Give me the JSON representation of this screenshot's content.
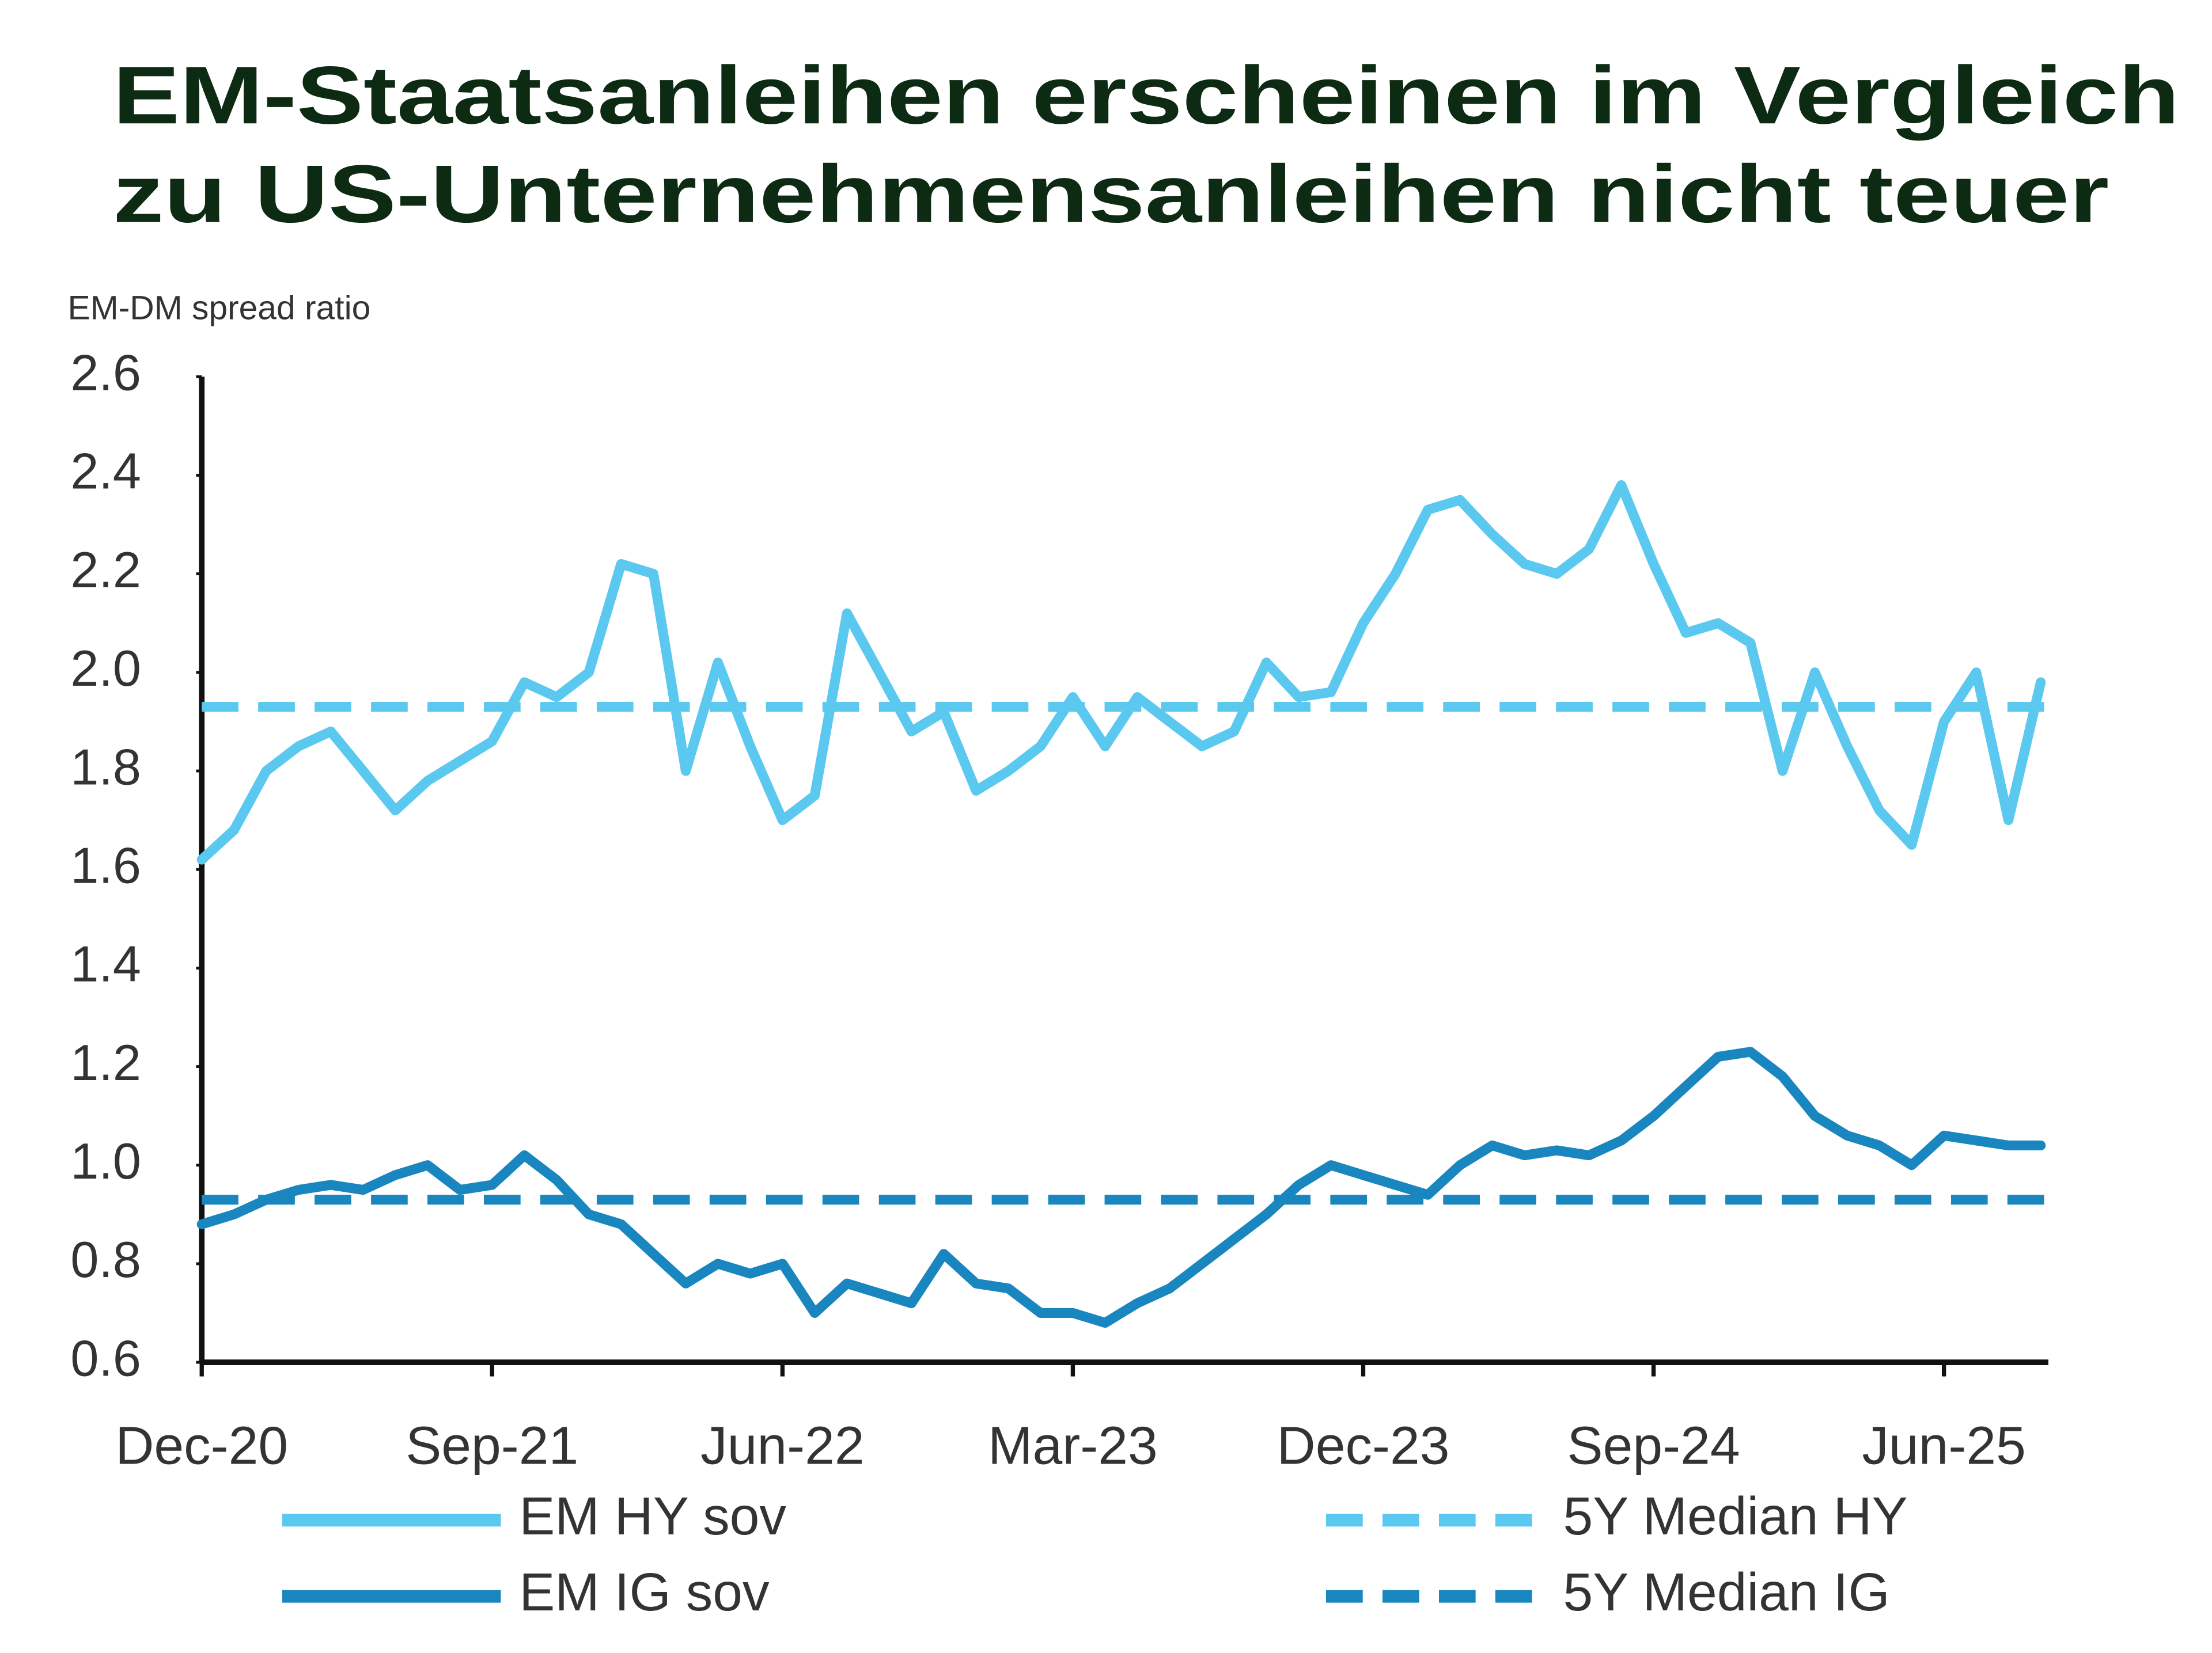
{
  "chart_data": {
    "type": "line",
    "title": [
      "EM-Staatsanleihen erscheinen im Vergleich",
      "zu US-Unternehmensanleihen nicht teuer"
    ],
    "y_label": "EM-DM spread ratio",
    "categories": [
      "Dec-20",
      null,
      null,
      null,
      null,
      null,
      null,
      null,
      null,
      "Sep-21",
      null,
      null,
      null,
      null,
      null,
      null,
      null,
      null,
      "Jun-22",
      null,
      null,
      null,
      null,
      null,
      null,
      null,
      null,
      "Mar-23",
      null,
      null,
      null,
      null,
      null,
      null,
      null,
      null,
      "Dec-23",
      null,
      null,
      null,
      null,
      null,
      null,
      null,
      null,
      "Sep-24",
      null,
      null,
      null,
      null,
      null,
      null,
      null,
      null,
      "Jun-25",
      null,
      null,
      null
    ],
    "ylim": [
      0.6,
      2.6
    ],
    "yticks": [
      0.6,
      0.8,
      {
        "value": 1,
        "label": "1.0"
      },
      1.2,
      1.4,
      1.6,
      1.8,
      {
        "value": 2,
        "label": "2.0"
      },
      2.2,
      2.4,
      2.6
    ],
    "series": [
      {
        "name": "EM HY sov",
        "color": "#5bc8f0",
        "values": [
          1.62,
          1.68,
          1.8,
          1.85,
          1.88,
          1.8,
          1.72,
          1.78,
          1.82,
          1.86,
          1.98,
          1.95,
          2.0,
          2.22,
          2.2,
          1.8,
          2.02,
          1.85,
          1.7,
          1.75,
          2.12,
          2.0,
          1.88,
          1.92,
          1.76,
          1.8,
          1.85,
          1.95,
          1.85,
          1.95,
          1.9,
          1.85,
          1.88,
          2.02,
          1.95,
          1.96,
          2.1,
          2.2,
          2.33,
          2.35,
          2.28,
          2.22,
          2.2,
          2.25,
          2.38,
          2.22,
          2.08,
          2.1,
          2.06,
          1.8,
          2.0,
          1.85,
          1.72,
          1.65,
          1.9,
          2.0,
          1.7,
          1.98
        ]
      },
      {
        "name": "EM IG sov",
        "color": "#1a86bf",
        "values": [
          0.88,
          0.9,
          0.93,
          0.95,
          0.96,
          0.95,
          0.98,
          1.0,
          0.95,
          0.96,
          1.02,
          0.97,
          0.9,
          0.88,
          0.82,
          0.76,
          0.8,
          0.78,
          0.8,
          0.7,
          0.76,
          0.74,
          0.72,
          0.82,
          0.76,
          0.75,
          0.7,
          0.7,
          0.68,
          0.72,
          0.75,
          0.8,
          0.85,
          0.9,
          0.96,
          1.0,
          0.98,
          0.96,
          0.94,
          1.0,
          1.04,
          1.02,
          1.03,
          1.02,
          1.05,
          1.1,
          1.16,
          1.22,
          1.23,
          1.18,
          1.1,
          1.06,
          1.04,
          1.0,
          1.06,
          1.05,
          1.04,
          1.04
        ]
      }
    ],
    "reference_lines": [
      {
        "name": "5Y Median HY",
        "color": "#5bc8f0",
        "value": 1.93
      },
      {
        "name": "5Y Median IG",
        "color": "#1a86bf",
        "value": 0.93
      }
    ]
  }
}
